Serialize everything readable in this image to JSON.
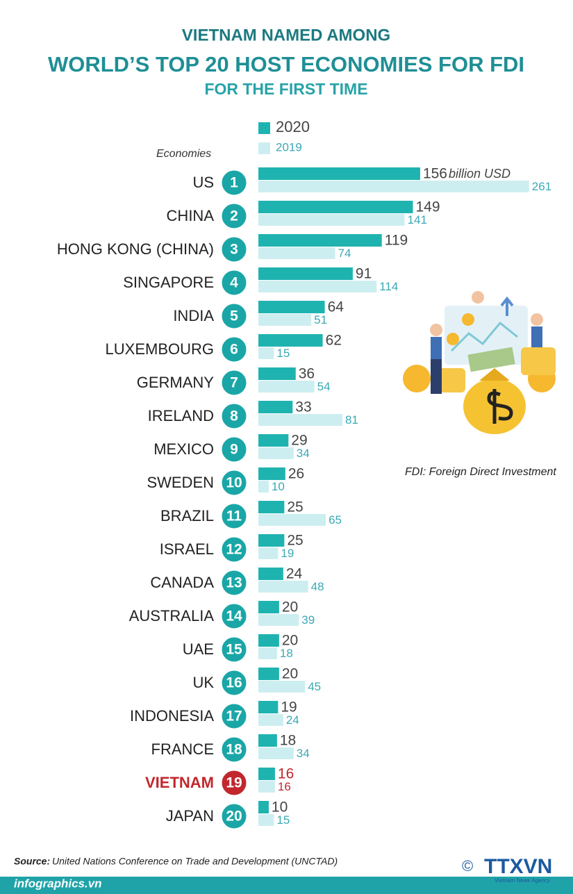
{
  "chart_data": {
    "type": "bar",
    "orientation": "horizontal",
    "title_lines": [
      "VIETNAM NAMED AMONG",
      "WORLD’S TOP 20  HOST ECONOMIES FOR FDI",
      "FOR THE FIRST TIME"
    ],
    "category_axis_label": "Economies",
    "unit_label": "billion USD",
    "categories": [
      "US",
      "CHINA",
      "HONG KONG (CHINA)",
      "SINGAPORE",
      "INDIA",
      "LUXEMBOURG",
      "GERMANY",
      "IRELAND",
      "MEXICO",
      "SWEDEN",
      "BRAZIL",
      "ISRAEL",
      "CANADA",
      "AUSTRALIA",
      "UAE",
      "UK",
      "INDONESIA",
      "FRANCE",
      "VIETNAM",
      "JAPAN"
    ],
    "ranks": [
      1,
      2,
      3,
      4,
      5,
      6,
      7,
      8,
      9,
      10,
      11,
      12,
      13,
      14,
      15,
      16,
      17,
      18,
      19,
      20
    ],
    "series": [
      {
        "name": "2020",
        "color": "#1fb3b0",
        "label_color": "#444444",
        "values": [
          156,
          149,
          119,
          91,
          64,
          62,
          36,
          33,
          29,
          26,
          25,
          25,
          24,
          20,
          20,
          20,
          19,
          18,
          16,
          10
        ]
      },
      {
        "name": "2019",
        "color": "#cdeef0",
        "label_color": "#3aa9b5",
        "values": [
          261,
          141,
          74,
          114,
          51,
          15,
          54,
          81,
          34,
          10,
          65,
          19,
          48,
          39,
          18,
          45,
          24,
          34,
          16,
          15
        ]
      }
    ],
    "xlim": [
      0,
      300
    ],
    "highlight": "VIETNAM",
    "highlight_color": "#c1272d",
    "rank_color": "#1aa6a6",
    "note": "FDI:  Foreign Direct Investment",
    "source_label": "Source:",
    "source": "United Nations Conference on Trade and Development (UNCTAD)",
    "footer": "infographics.vn",
    "logo": "TTXVN",
    "logo_subtitle": "Vietnam News Agency",
    "copyright": "©"
  }
}
